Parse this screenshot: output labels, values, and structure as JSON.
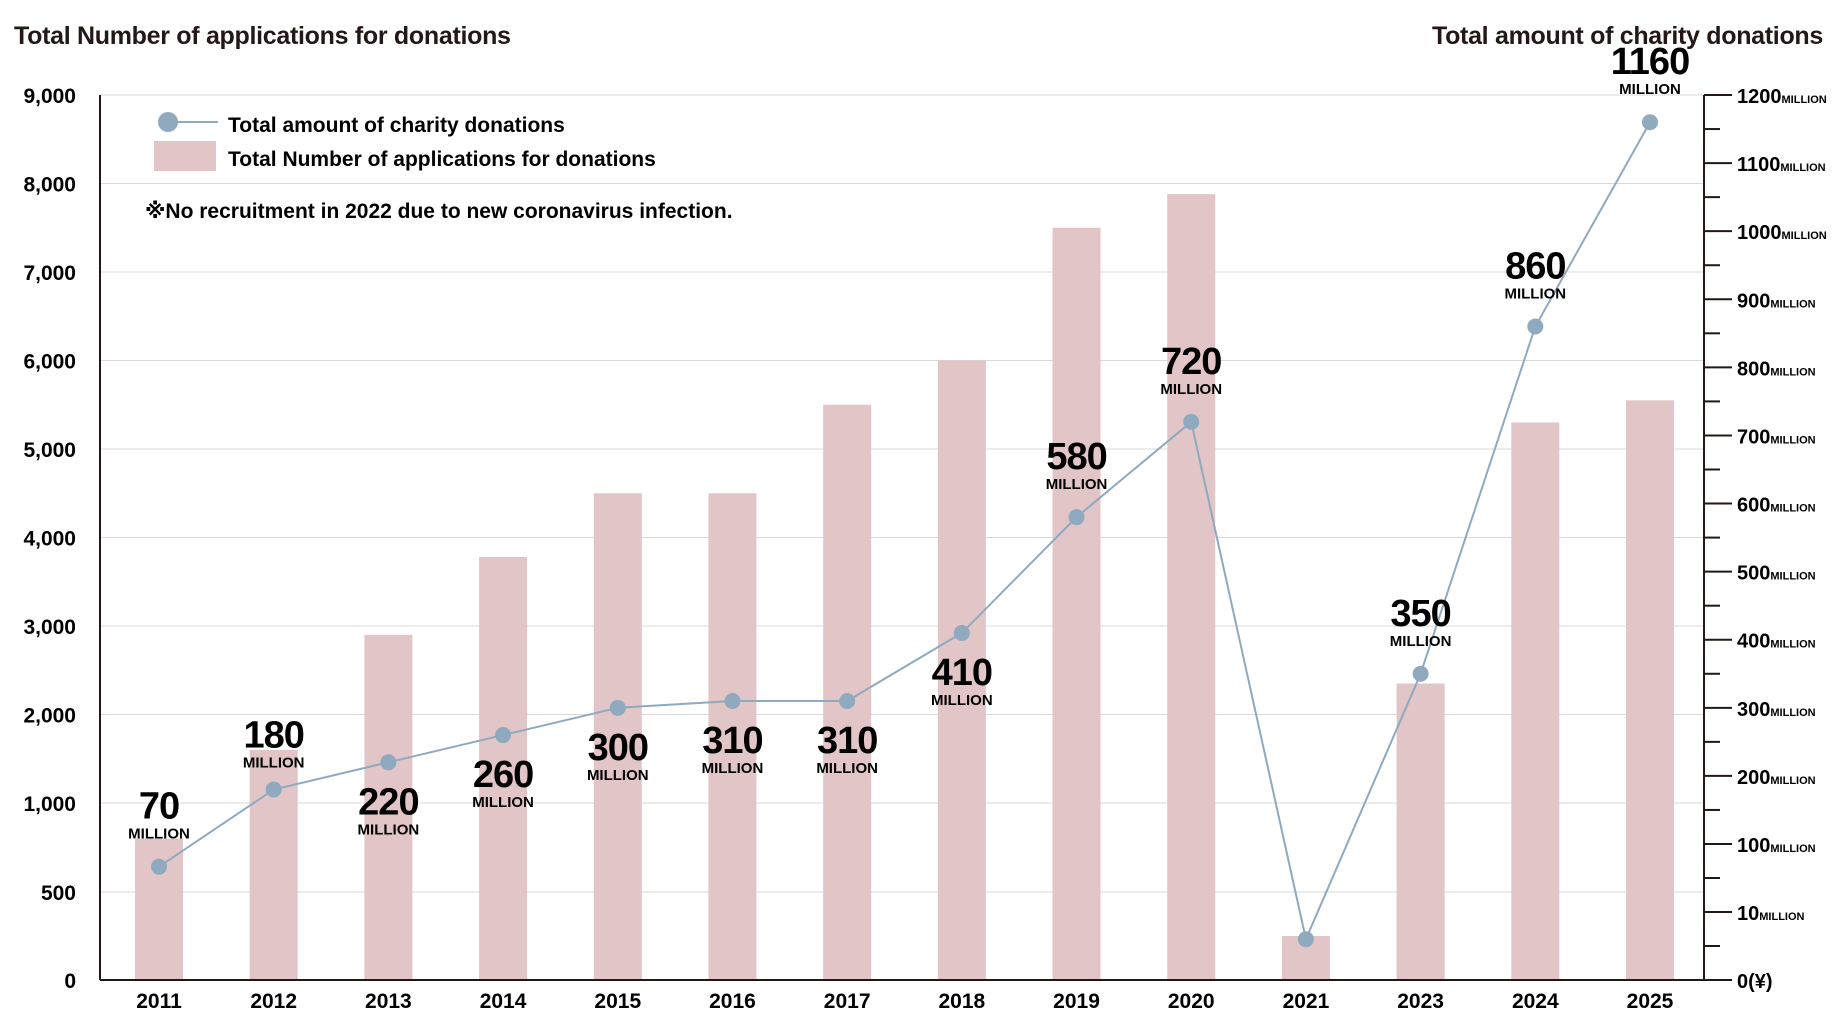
{
  "chart_data": {
    "type": "bar-line-combo",
    "left_axis_title": "Total Number of applications for donations",
    "right_axis_title": "Total amount of charity donations",
    "categories": [
      "2011",
      "2012",
      "2013",
      "2014",
      "2015",
      "2016",
      "2017",
      "2018",
      "2019",
      "2020",
      "2021",
      "2023",
      "2024",
      "2025"
    ],
    "series": [
      {
        "name": "Total Number of applications for donations",
        "type": "bar",
        "axis": "left",
        "color": "#e2c5c6",
        "values": [
          800,
          1600,
          2900,
          3780,
          4500,
          4500,
          5500,
          6000,
          7500,
          7880,
          250,
          2350,
          5300,
          5550
        ]
      },
      {
        "name": "Total amount of charity donations",
        "type": "line",
        "axis": "right",
        "color": "#8fa9bf",
        "values": [
          70,
          180,
          220,
          260,
          300,
          310,
          310,
          410,
          580,
          720,
          0,
          350,
          860,
          1160
        ],
        "labels": [
          "70",
          "180",
          "220",
          "260",
          "300",
          "310",
          "310",
          "410",
          "580",
          "720",
          "",
          "350",
          "860",
          "1160"
        ],
        "unit_label": "MILLION"
      }
    ],
    "left_axis_ticks": [
      "0",
      "500",
      "1,000",
      "2,000",
      "3,000",
      "4,000",
      "5,000",
      "6,000",
      "7,000",
      "8,000",
      "9,000"
    ],
    "right_axis_ticks": [
      {
        "num": "0",
        "suffix": "(¥)"
      },
      {
        "num": "10",
        "suffix": "MILLION"
      },
      {
        "num": "100",
        "suffix": "MILLION"
      },
      {
        "num": "200",
        "suffix": "MILLION"
      },
      {
        "num": "300",
        "suffix": "MILLION"
      },
      {
        "num": "400",
        "suffix": "MILLION"
      },
      {
        "num": "500",
        "suffix": "MILLION"
      },
      {
        "num": "600",
        "suffix": "MILLION"
      },
      {
        "num": "700",
        "suffix": "MILLION"
      },
      {
        "num": "800",
        "suffix": "MILLION"
      },
      {
        "num": "900",
        "suffix": "MILLION"
      },
      {
        "num": "1000",
        "suffix": "MILLION"
      },
      {
        "num": "1100",
        "suffix": "MILLION"
      },
      {
        "num": "1200",
        "suffix": "MILLION"
      }
    ],
    "legend": {
      "line_label": "Total amount of charity donations",
      "bar_label": "Total Number of applications for donations",
      "placement": "top-left"
    },
    "note": "※No recruitment in 2022 due to new coronavirus infection.",
    "grid": true
  }
}
